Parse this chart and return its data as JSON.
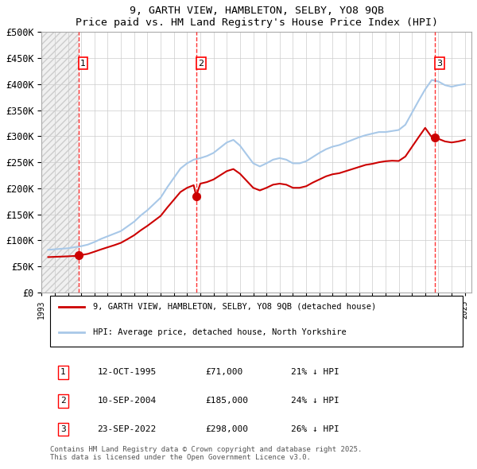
{
  "title1": "9, GARTH VIEW, HAMBLETON, SELBY, YO8 9QB",
  "title2": "Price paid vs. HM Land Registry's House Price Index (HPI)",
  "ylabel_ticks": [
    "£0",
    "£50K",
    "£100K",
    "£150K",
    "£200K",
    "£250K",
    "£300K",
    "£350K",
    "£400K",
    "£450K",
    "£500K"
  ],
  "ylim": [
    0,
    500000
  ],
  "xlim_start": 1993.0,
  "xlim_end": 2025.5,
  "hpi_color": "#a8c8e8",
  "price_color": "#cc0000",
  "bg_hatch_color": "#e8e8e8",
  "purchase_dates": [
    1995.79,
    2004.69,
    2022.73
  ],
  "purchase_prices": [
    71000,
    185000,
    298000
  ],
  "purchase_labels": [
    "1",
    "2",
    "3"
  ],
  "legend_label1": "9, GARTH VIEW, HAMBLETON, SELBY, YO8 9QB (detached house)",
  "legend_label2": "HPI: Average price, detached house, North Yorkshire",
  "table_data": [
    [
      "1",
      "12-OCT-1995",
      "£71,000",
      "21% ↓ HPI"
    ],
    [
      "2",
      "10-SEP-2004",
      "£185,000",
      "24% ↓ HPI"
    ],
    [
      "3",
      "23-SEP-2022",
      "£298,000",
      "26% ↓ HPI"
    ]
  ],
  "footnote": "Contains HM Land Registry data © Crown copyright and database right 2025.\nThis data is licensed under the Open Government Licence v3.0.",
  "hpi_data_x": [
    1993.5,
    1994.0,
    1994.5,
    1995.0,
    1995.5,
    1996.0,
    1996.5,
    1997.0,
    1997.5,
    1998.0,
    1998.5,
    1999.0,
    1999.5,
    2000.0,
    2000.5,
    2001.0,
    2001.5,
    2002.0,
    2002.5,
    2003.0,
    2003.5,
    2004.0,
    2004.5,
    2005.0,
    2005.5,
    2006.0,
    2006.5,
    2007.0,
    2007.5,
    2008.0,
    2008.5,
    2009.0,
    2009.5,
    2010.0,
    2010.5,
    2011.0,
    2011.5,
    2012.0,
    2012.5,
    2013.0,
    2013.5,
    2014.0,
    2014.5,
    2015.0,
    2015.5,
    2016.0,
    2016.5,
    2017.0,
    2017.5,
    2018.0,
    2018.5,
    2019.0,
    2019.5,
    2020.0,
    2020.5,
    2021.0,
    2021.5,
    2022.0,
    2022.5,
    2023.0,
    2023.5,
    2024.0,
    2024.5,
    2025.0
  ],
  "hpi_data_y": [
    82000,
    83000,
    84000,
    85000,
    87000,
    89000,
    92000,
    97000,
    103000,
    108000,
    113000,
    118000,
    127000,
    136000,
    148000,
    158000,
    170000,
    182000,
    202000,
    220000,
    238000,
    248000,
    255000,
    258000,
    262000,
    268000,
    278000,
    288000,
    293000,
    282000,
    265000,
    248000,
    242000,
    248000,
    255000,
    258000,
    255000,
    248000,
    248000,
    252000,
    260000,
    268000,
    275000,
    280000,
    283000,
    288000,
    293000,
    298000,
    302000,
    305000,
    308000,
    308000,
    310000,
    312000,
    322000,
    345000,
    368000,
    390000,
    408000,
    405000,
    398000,
    395000,
    398000,
    400000
  ],
  "price_data_x": [
    1993.5,
    1994.0,
    1994.5,
    1995.0,
    1995.5,
    1995.79,
    1996.0,
    1996.5,
    1997.0,
    1997.5,
    1998.0,
    1998.5,
    1999.0,
    1999.5,
    2000.0,
    2000.5,
    2001.0,
    2001.5,
    2002.0,
    2002.5,
    2003.0,
    2003.5,
    2004.0,
    2004.5,
    2004.69,
    2005.0,
    2005.5,
    2006.0,
    2006.5,
    2007.0,
    2007.5,
    2008.0,
    2008.5,
    2009.0,
    2009.5,
    2010.0,
    2010.5,
    2011.0,
    2011.5,
    2012.0,
    2012.5,
    2013.0,
    2013.5,
    2014.0,
    2014.5,
    2015.0,
    2015.5,
    2016.0,
    2016.5,
    2017.0,
    2017.5,
    2018.0,
    2018.5,
    2019.0,
    2019.5,
    2020.0,
    2020.5,
    2021.0,
    2021.5,
    2022.0,
    2022.5,
    2022.73,
    2023.0,
    2023.5,
    2024.0,
    2024.5,
    2025.0
  ],
  "price_data_y": [
    68000,
    68500,
    69000,
    69500,
    70200,
    71000,
    71900,
    74200,
    78400,
    82800,
    86900,
    90900,
    95400,
    102500,
    110000,
    119500,
    128000,
    137500,
    147000,
    163000,
    178000,
    193000,
    201000,
    206000,
    185000,
    209000,
    212000,
    217000,
    225000,
    233000,
    237000,
    228000,
    214500,
    201000,
    196000,
    201000,
    207000,
    209000,
    207000,
    201000,
    201000,
    204000,
    211000,
    217000,
    223000,
    227000,
    229000,
    233000,
    237000,
    241000,
    245000,
    247000,
    250000,
    252000,
    253000,
    252500,
    261000,
    279500,
    298000,
    316000,
    298000,
    298000,
    295000,
    290000,
    288000,
    290000,
    293000
  ]
}
